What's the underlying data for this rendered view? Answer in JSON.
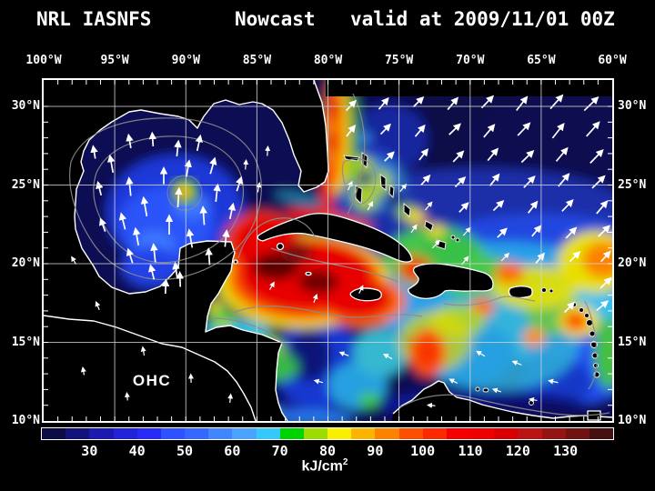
{
  "header": {
    "model": "NRL IASNFS",
    "product": "Nowcast",
    "validity": "valid at 2009/11/01 00Z"
  },
  "axes": {
    "top": [
      "100°W",
      "95°W",
      "90°W",
      "85°W",
      "80°W",
      "75°W",
      "70°W",
      "65°W",
      "60°W"
    ],
    "left": [
      "30°N",
      "25°N",
      "20°N",
      "15°N",
      "10°N"
    ],
    "right": [
      "30°N",
      "25°N",
      "20°N",
      "15°N",
      "10°N"
    ]
  },
  "map": {
    "annotation": "OHC"
  },
  "colorbar": {
    "ticks": [
      "30",
      "40",
      "50",
      "60",
      "70",
      "80",
      "90",
      "100",
      "110",
      "120",
      "130"
    ],
    "unit_base": "kJ/cm",
    "unit_exp": "2",
    "segment_colors": [
      "#0b0b45",
      "#12127d",
      "#1a1aae",
      "#2222d8",
      "#2a2af8",
      "#2e52ff",
      "#3468ff",
      "#3f86ff",
      "#4aa4ff",
      "#35c8fa",
      "#00d400",
      "#9cdc00",
      "#f8f000",
      "#fcb400",
      "#fc8200",
      "#fc5000",
      "#fc2800",
      "#f40000",
      "#ec0000",
      "#d80000",
      "#b81414",
      "#941414",
      "#701212",
      "#461010"
    ]
  }
}
